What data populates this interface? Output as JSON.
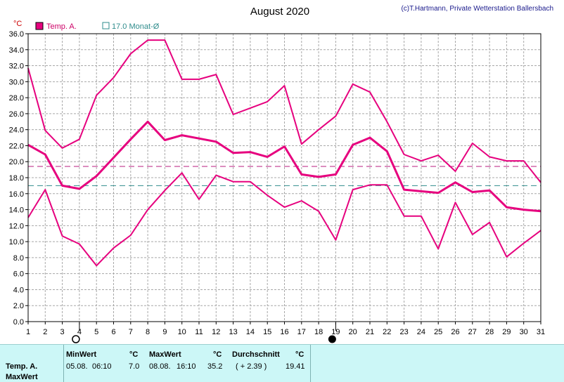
{
  "header": {
    "title": "August 2020",
    "copyright": "(c)T.Hartmann, Private Wetterstation Ballersbach"
  },
  "colors": {
    "series": "#e6007e",
    "avg_line": "#b81c7f",
    "month_avg_line": "#2f8c8c",
    "grid": "#a8a8a8",
    "panel_bg": "#ccf7f7"
  },
  "chart_data": {
    "type": "line",
    "y_unit_label": "°C",
    "xlim": [
      1,
      31
    ],
    "ylim": [
      0,
      36
    ],
    "y_ticks": [
      "0.0",
      "2.0",
      "4.0",
      "6.0",
      "8.0",
      "10.0",
      "12.0",
      "14.0",
      "16.0",
      "18.0",
      "20.0",
      "22.0",
      "24.0",
      "26.0",
      "28.0",
      "30.0",
      "32.0",
      "34.0",
      "36.0"
    ],
    "x_ticks": [
      "1",
      "2",
      "3",
      "4",
      "5",
      "6",
      "7",
      "8",
      "9",
      "10",
      "11",
      "12",
      "13",
      "14",
      "15",
      "16",
      "17",
      "18",
      "19",
      "20",
      "21",
      "22",
      "23",
      "24",
      "25",
      "26",
      "27",
      "28",
      "29",
      "30",
      "31"
    ],
    "grid": true,
    "legend": [
      {
        "label": "Temp. A.",
        "symbol": "filled-square"
      },
      {
        "label": "17.0 Monat-Ø",
        "symbol": "hollow-square"
      }
    ],
    "series": [
      {
        "name": "Temp. A.",
        "role": "max",
        "values": [
          31.7,
          23.9,
          21.7,
          22.8,
          28.3,
          30.5,
          33.5,
          35.2,
          35.2,
          30.3,
          30.3,
          30.9,
          25.9,
          26.7,
          27.5,
          29.5,
          22.2,
          24.0,
          25.7,
          29.7,
          28.7,
          25.0,
          20.9,
          20.1,
          20.8,
          18.8,
          22.3,
          20.6,
          20.1,
          20.1,
          17.4
        ]
      },
      {
        "name": "Temp. A.",
        "role": "mean",
        "values": [
          22.1,
          20.9,
          17.0,
          16.6,
          18.2,
          20.5,
          22.8,
          25.0,
          22.7,
          23.3,
          22.9,
          22.5,
          21.1,
          21.2,
          20.6,
          21.9,
          18.4,
          18.1,
          18.4,
          22.1,
          23.0,
          21.3,
          16.5,
          16.3,
          16.1,
          17.4,
          16.2,
          16.4,
          14.3,
          14.0,
          13.8
        ]
      },
      {
        "name": "Temp. A.",
        "role": "min",
        "values": [
          13.0,
          16.5,
          10.7,
          9.7,
          7.0,
          9.2,
          10.8,
          14.0,
          16.4,
          18.6,
          15.3,
          18.3,
          17.5,
          17.5,
          15.8,
          14.3,
          15.1,
          13.8,
          10.2,
          16.5,
          17.1,
          17.1,
          13.2,
          13.2,
          9.1,
          14.9,
          10.9,
          12.4,
          8.1,
          9.8,
          11.4
        ]
      }
    ],
    "reference_lines": [
      {
        "value": 19.41,
        "style": "dashed"
      },
      {
        "value": 17.0,
        "style": "dashed",
        "label": "17.0 Monat-Ø"
      }
    ],
    "moon_markers": [
      {
        "day": 4,
        "phase": "full"
      },
      {
        "day": 19,
        "phase": "new"
      }
    ]
  },
  "stats": {
    "col_min": {
      "title": "MinWert",
      "unit": "°C",
      "date": "05.08.",
      "time": "06:10",
      "value": "7.0"
    },
    "col_max": {
      "title": "MaxWert",
      "unit": "°C",
      "date": "08.08.",
      "time": "16:10",
      "value": "35.2"
    },
    "col_avg": {
      "title": "Durchschnitt",
      "unit": "°C",
      "delta": "( + 2.39 )",
      "value": "19.41"
    },
    "row_label": "Temp. A.",
    "row_sublabel": "MaxWert"
  }
}
